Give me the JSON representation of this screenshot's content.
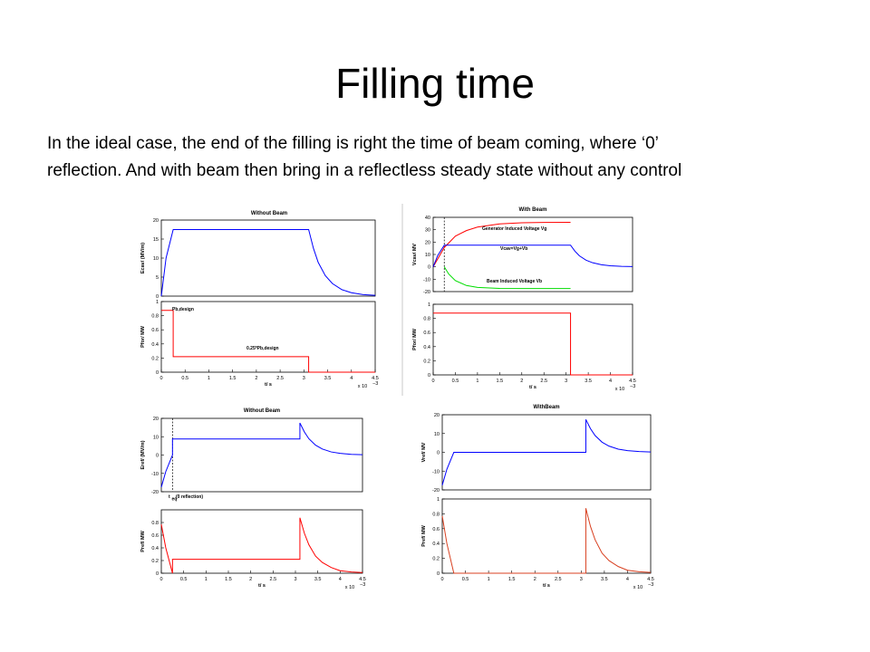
{
  "title": "Filling time",
  "body_lines": [
    "In the ideal case, the end of the filling is right the time of beam coming, where ‘0’",
    "reflection. And with beam then bring in a reflectless steady state without any control"
  ],
  "chart_data": [
    {
      "type": "line",
      "title": "Without Beam",
      "ylabel": "Ecav/ (MV/m)",
      "xlim": [
        0,
        4.5
      ],
      "ylim": [
        0,
        20
      ],
      "yticks": [
        0,
        5,
        10,
        15,
        20
      ],
      "series": [
        {
          "color": "#0000ff",
          "x": [
            0,
            0.1,
            0.25,
            3.1,
            3.2,
            3.3,
            3.45,
            3.6,
            3.8,
            4.0,
            4.25,
            4.5
          ],
          "values": [
            0,
            10,
            17.5,
            17.5,
            12.6,
            8.9,
            5.4,
            3.3,
            1.7,
            0.9,
            0.4,
            0.2
          ]
        }
      ]
    },
    {
      "type": "line",
      "ylabel": "Pfor/ MW",
      "xlabel": "t/ s",
      "x_scale": {
        "base": "x 10",
        "exponent": "−3"
      },
      "xlim": [
        0,
        4.5
      ],
      "ylim": [
        0,
        1
      ],
      "xticks": [
        0,
        0.5,
        1,
        1.5,
        2,
        2.5,
        3,
        3.5,
        4,
        4.5
      ],
      "yticks": [
        0,
        0.2,
        0.4,
        0.6,
        0.8,
        1
      ],
      "annotations": [
        "Pb,design",
        "0.25*Pb,design"
      ],
      "series": [
        {
          "color": "#ff0000",
          "x": [
            0,
            0.25,
            0.25,
            3.1,
            3.1,
            4.5
          ],
          "values": [
            0.875,
            0.875,
            0.22,
            0.22,
            0,
            0
          ]
        }
      ]
    },
    {
      "type": "line",
      "title": "With Beam",
      "ylabel": "Vcav/ MV",
      "xlim": [
        0,
        4.5
      ],
      "ylim": [
        -20,
        40
      ],
      "yticks": [
        -20,
        -10,
        0,
        10,
        20,
        30,
        40
      ],
      "annotations": [
        "Generator Induced Voltage Vg",
        "Vcav=Vg+Vb",
        "Beam Induced Voltage Vb"
      ],
      "series": [
        {
          "color": "#ff0000",
          "x": [
            0,
            0.25,
            0.5,
            0.75,
            1,
            1.5,
            2,
            2.5,
            3.1
          ],
          "values": [
            0,
            15.6,
            24.8,
            29.3,
            32.1,
            34.7,
            35.6,
            35.9,
            36
          ]
        },
        {
          "color": "#0000ff",
          "x": [
            0,
            0.1,
            0.25,
            3.1,
            3.2,
            3.3,
            3.45,
            3.6,
            3.8,
            4.0,
            4.25,
            4.5
          ],
          "values": [
            0,
            9,
            17.5,
            17.5,
            12.6,
            8.9,
            5.4,
            3.3,
            1.7,
            0.9,
            0.4,
            0.2
          ]
        },
        {
          "color": "#00dd00",
          "x": [
            0.25,
            0.35,
            0.5,
            0.75,
            1,
            1.5,
            2,
            2.5,
            3.1
          ],
          "values": [
            0,
            -5.8,
            -11.1,
            -15.1,
            -16.6,
            -17.4,
            -17.5,
            -17.5,
            -17.5
          ]
        }
      ]
    },
    {
      "type": "line",
      "ylabel": "Pfor/ MW",
      "xlabel": "t/ s",
      "x_scale": {
        "base": "x 10",
        "exponent": "−3"
      },
      "xlim": [
        0,
        4.5
      ],
      "ylim": [
        0,
        1
      ],
      "xticks": [
        0,
        0.5,
        1,
        1.5,
        2,
        2.5,
        3,
        3.5,
        4,
        4.5
      ],
      "yticks": [
        0,
        0.2,
        0.4,
        0.6,
        0.8,
        1
      ],
      "series": [
        {
          "color": "#ff0000",
          "x": [
            0,
            3.1,
            3.1,
            4.5
          ],
          "values": [
            0.875,
            0.875,
            0,
            0
          ]
        }
      ]
    },
    {
      "type": "line",
      "title": "Without Beam",
      "ylabel": "Eref/ (MV/m)",
      "xlim": [
        0,
        4.5
      ],
      "ylim": [
        -20,
        20
      ],
      "yticks": [
        -20,
        -10,
        0,
        10,
        20
      ],
      "annotations": [
        "t",
        "eq",
        "(0 reflection)"
      ],
      "series": [
        {
          "color": "#0000ff",
          "x": [
            0,
            0.1,
            0.25,
            0.25,
            3.1,
            3.1,
            3.2,
            3.3,
            3.45,
            3.6,
            3.8,
            4.0,
            4.25,
            4.5
          ],
          "values": [
            -17.5,
            -9,
            0,
            8.75,
            8.75,
            17.5,
            12.6,
            8.9,
            5.4,
            3.3,
            1.7,
            0.9,
            0.4,
            0.2
          ]
        }
      ]
    },
    {
      "type": "line",
      "ylabel": "Pref/ MW",
      "xlabel": "t/ s",
      "x_scale": {
        "base": "x 10",
        "exponent": "−3"
      },
      "xlim": [
        0,
        4.5
      ],
      "ylim": [
        0,
        1
      ],
      "xticks": [
        0,
        0.5,
        1,
        1.5,
        2,
        2.5,
        3,
        3.5,
        4,
        4.5
      ],
      "yticks": [
        0,
        0.2,
        0.4,
        0.6,
        0.8
      ],
      "series": [
        {
          "color": "#ff0000",
          "x": [
            0,
            0.1,
            0.25,
            0.25,
            3.1,
            3.1,
            3.2,
            3.3,
            3.45,
            3.6,
            3.8,
            4.0,
            4.25,
            4.5
          ],
          "values": [
            0.77,
            0.4,
            0,
            0.22,
            0.22,
            0.875,
            0.63,
            0.45,
            0.27,
            0.17,
            0.09,
            0.04,
            0.02,
            0.01
          ]
        }
      ]
    },
    {
      "type": "line",
      "title": "WithBeam",
      "ylabel": "Vref/ MV",
      "xlim": [
        0,
        4.5
      ],
      "ylim": [
        -20,
        20
      ],
      "yticks": [
        -20,
        -10,
        0,
        10,
        20
      ],
      "series": [
        {
          "color": "#0000ff",
          "x": [
            0,
            0.1,
            0.25,
            3.1,
            3.1,
            3.2,
            3.3,
            3.45,
            3.6,
            3.8,
            4.0,
            4.25,
            4.5
          ],
          "values": [
            -17.5,
            -9,
            0,
            0,
            17.5,
            12.6,
            8.9,
            5.4,
            3.3,
            1.7,
            0.9,
            0.4,
            0.2
          ]
        }
      ]
    },
    {
      "type": "line",
      "ylabel": "Pref/ MW",
      "xlabel": "t/ s",
      "x_scale": {
        "base": "x 10",
        "exponent": "−3"
      },
      "xlim": [
        0,
        4.5
      ],
      "ylim": [
        0,
        1
      ],
      "xticks": [
        0,
        0.5,
        1,
        1.5,
        2,
        2.5,
        3,
        3.5,
        4,
        4.5
      ],
      "yticks": [
        0,
        0.2,
        0.4,
        0.6,
        0.8,
        1
      ],
      "series": [
        {
          "color": "#d84020",
          "x": [
            0,
            0.1,
            0.25,
            3.1,
            3.1,
            3.2,
            3.3,
            3.45,
            3.6,
            3.8,
            4.0,
            4.25,
            4.5
          ],
          "values": [
            0.77,
            0.4,
            0,
            0,
            0.875,
            0.63,
            0.45,
            0.27,
            0.17,
            0.09,
            0.04,
            0.02,
            0.01
          ]
        }
      ]
    }
  ]
}
